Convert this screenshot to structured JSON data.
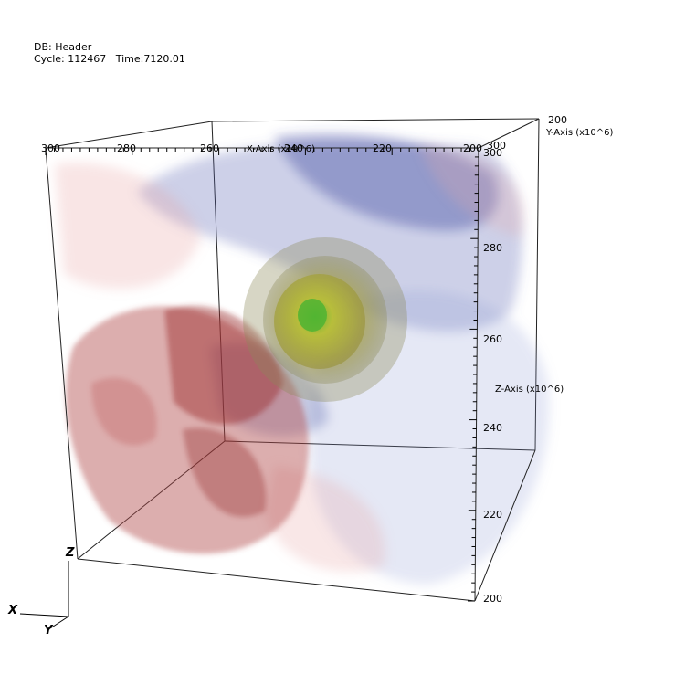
{
  "header": {
    "db_line": "DB: Header",
    "cycle_line": "Cycle: 112467   Time:7120.01"
  },
  "axes": {
    "x_label": "X-Axis (x10^6)",
    "y_label": "Y-Axis (x10^6)",
    "z_label": "Z-Axis (x10^6)",
    "x_ticks": [
      "300",
      "280",
      "260",
      "240",
      "220",
      "200"
    ],
    "y_ticks": [
      "300",
      "200"
    ],
    "z_ticks": [
      "300",
      "280",
      "260",
      "240",
      "220",
      "200"
    ]
  },
  "triad": {
    "x": "X",
    "y": "Y",
    "z": "Z"
  },
  "colors": {
    "hot": "#a02828",
    "cold": "#3c46a0",
    "core_outer": "#8c8a5a",
    "core_inner": "#c8c83c",
    "core_center": "#50b432"
  }
}
